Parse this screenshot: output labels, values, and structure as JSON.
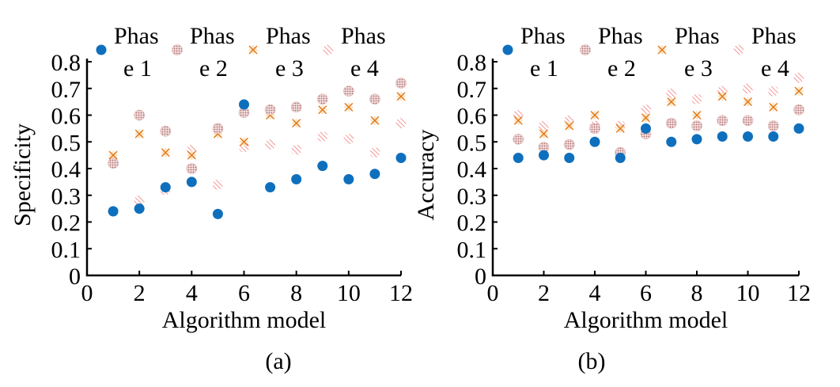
{
  "colors": {
    "phase1": "#0e6fbd",
    "phase2": "#c98a8a",
    "phase3": "#e07818",
    "phase4": "#f08080"
  },
  "chart_data": [
    {
      "type": "scatter",
      "caption": "(a)",
      "xlabel": "Algorithm model",
      "ylabel": "Specificity",
      "xlim": [
        0,
        12
      ],
      "ylim": [
        0,
        0.8
      ],
      "xticks": [
        "0",
        "2",
        "4",
        "6",
        "8",
        "10",
        "12"
      ],
      "yticks": [
        "0",
        "0.1",
        "0.2",
        "0.3",
        "0.4",
        "0.5",
        "0.6",
        "0.7",
        "0.8"
      ],
      "legend": {
        "position": "top",
        "entries_line1": [
          "Phas",
          "Phas",
          "Phas",
          "Phas"
        ],
        "entries_line2": [
          "e 1",
          "e 2",
          "e 3",
          "e 4"
        ]
      },
      "x": [
        1,
        2,
        3,
        4,
        5,
        6,
        7,
        8,
        9,
        10,
        11,
        12
      ],
      "series": [
        {
          "name": "Phase 1",
          "marker": "circle",
          "values": [
            0.24,
            0.25,
            0.33,
            0.35,
            0.23,
            0.64,
            0.33,
            0.36,
            0.41,
            0.36,
            0.38,
            0.44
          ]
        },
        {
          "name": "Phase 2",
          "marker": "dotted-circle",
          "values": [
            0.42,
            0.6,
            0.54,
            0.4,
            0.55,
            0.61,
            0.62,
            0.63,
            0.66,
            0.69,
            0.66,
            0.72
          ]
        },
        {
          "name": "Phase 3",
          "marker": "x-diamond",
          "values": [
            0.45,
            0.53,
            0.46,
            0.45,
            0.53,
            0.5,
            0.6,
            0.57,
            0.62,
            0.63,
            0.58,
            0.67
          ]
        },
        {
          "name": "Phase 4",
          "marker": "hatch",
          "values": [
            0.43,
            0.28,
            0.32,
            0.47,
            0.34,
            0.48,
            0.49,
            0.47,
            0.52,
            0.51,
            0.46,
            0.57
          ]
        }
      ]
    },
    {
      "type": "scatter",
      "caption": "(b)",
      "xlabel": "Algorithm model",
      "ylabel": "Accuracy",
      "xlim": [
        0,
        12
      ],
      "ylim": [
        0,
        0.8
      ],
      "xticks": [
        "0",
        "2",
        "4",
        "6",
        "8",
        "10",
        "12"
      ],
      "yticks": [
        "0",
        "0.1",
        "0.2",
        "0.3",
        "0.4",
        "0.5",
        "0.6",
        "0.7",
        "0.8"
      ],
      "legend": {
        "position": "top",
        "entries_line1": [
          "Phas",
          "Phas",
          "Phas",
          "Phas"
        ],
        "entries_line2": [
          "e 1",
          "e 2",
          "e 3",
          "e 4"
        ]
      },
      "x": [
        1,
        2,
        3,
        4,
        5,
        6,
        7,
        8,
        9,
        10,
        11,
        12
      ],
      "series": [
        {
          "name": "Phase 1",
          "marker": "circle",
          "values": [
            0.44,
            0.45,
            0.44,
            0.5,
            0.44,
            0.55,
            0.5,
            0.51,
            0.52,
            0.52,
            0.52,
            0.55
          ]
        },
        {
          "name": "Phase 2",
          "marker": "dotted-circle",
          "values": [
            0.51,
            0.48,
            0.49,
            0.55,
            0.46,
            0.53,
            0.57,
            0.56,
            0.58,
            0.58,
            0.56,
            0.62
          ]
        },
        {
          "name": "Phase 3",
          "marker": "x-diamond",
          "values": [
            0.58,
            0.53,
            0.56,
            0.6,
            0.55,
            0.59,
            0.65,
            0.6,
            0.67,
            0.65,
            0.63,
            0.69
          ]
        },
        {
          "name": "Phase 4",
          "marker": "hatch",
          "values": [
            0.6,
            0.56,
            0.58,
            0.56,
            0.56,
            0.62,
            0.68,
            0.66,
            0.69,
            0.7,
            0.69,
            0.74
          ]
        }
      ]
    }
  ]
}
